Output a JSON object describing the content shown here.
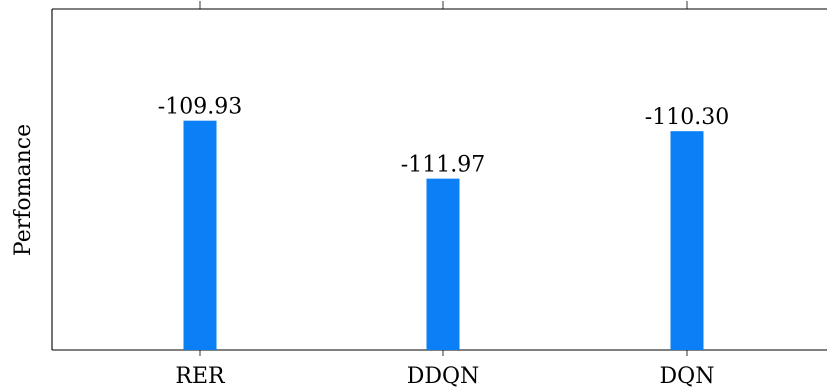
{
  "chart_data": {
    "type": "bar",
    "categories": [
      "RER",
      "DDQN",
      "DQN"
    ],
    "values": [
      -109.93,
      -111.97,
      -110.3
    ],
    "data_labels": [
      "-109.93",
      "-111.97",
      "-110.30"
    ],
    "ylabel": "Perfomance",
    "xlabel": "",
    "title": "",
    "ylim": [
      -118,
      -106
    ],
    "grid": false,
    "colors": {
      "bar": "#0b7ff5",
      "axis": "#000000",
      "text": "#000000"
    }
  }
}
